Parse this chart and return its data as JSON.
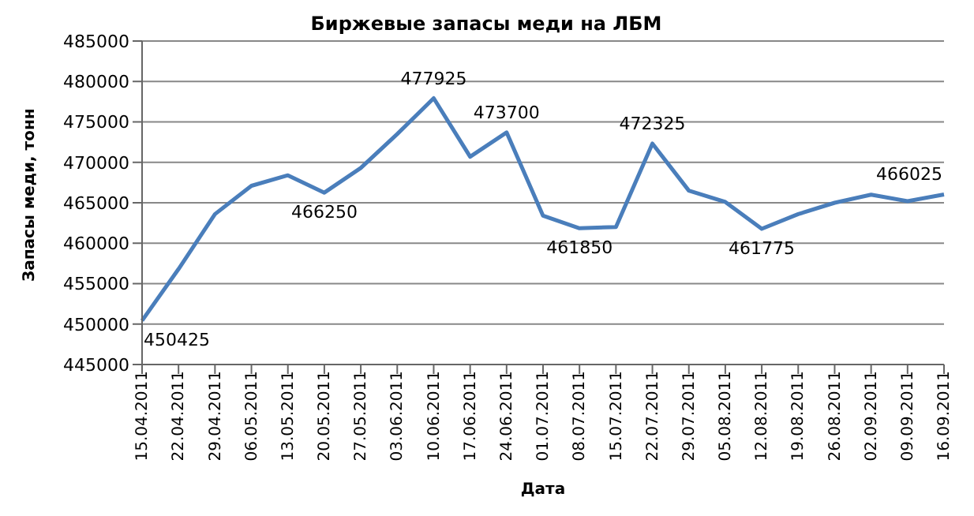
{
  "chart_data": {
    "type": "line",
    "title": "Биржевые запасы меди на ЛБМ",
    "xlabel": "Дата",
    "ylabel": "Запасы меди, тонн",
    "categories": [
      "15.04.2011",
      "22.04.2011",
      "29.04.2011",
      "06.05.2011",
      "13.05.2011",
      "20.05.2011",
      "27.05.2011",
      "03.06.2011",
      "10.06.2011",
      "17.06.2011",
      "24.06.2011",
      "01.07.2011",
      "08.07.2011",
      "15.07.2011",
      "22.07.2011",
      "29.07.2011",
      "05.08.2011",
      "12.08.2011",
      "19.08.2011",
      "26.08.2011",
      "02.09.2011",
      "09.09.2011",
      "16.09.2011"
    ],
    "series": [
      {
        "color": "#4a7ebb",
        "values": [
          450425,
          456800,
          463600,
          467100,
          468400,
          466250,
          469300,
          473500,
          477925,
          470700,
          473700,
          463400,
          461850,
          462000,
          472325,
          466500,
          465100,
          461775,
          463600,
          465000,
          466000,
          465200,
          466025
        ],
        "value_labels": [
          "450425",
          null,
          null,
          null,
          null,
          "466250",
          null,
          null,
          "477925",
          null,
          "473700",
          null,
          "461850",
          null,
          "472325",
          null,
          null,
          "461775",
          null,
          null,
          null,
          null,
          "466025"
        ]
      }
    ],
    "ylim": [
      445000,
      485000
    ],
    "yticks": [
      445000,
      450000,
      455000,
      460000,
      465000,
      470000,
      475000,
      480000,
      485000
    ],
    "grid": "y",
    "legend": false,
    "marker": "none",
    "line_style": "solid"
  }
}
